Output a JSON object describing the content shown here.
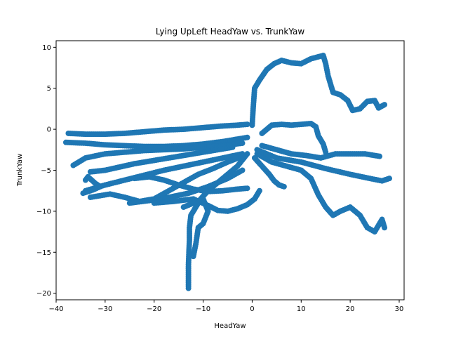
{
  "chart_data": {
    "type": "scatter",
    "title": "Lying UpLeft HeadYaw vs. TrunkYaw",
    "xlabel": "HeadYaw",
    "ylabel": "TrunkYaw",
    "xlim": [
      -40.0,
      31.0
    ],
    "ylim": [
      -20.8,
      10.8
    ],
    "xticks": [
      -40,
      -30,
      -20,
      -10,
      0,
      10,
      20,
      30
    ],
    "yticks": [
      -20,
      -15,
      -10,
      -5,
      0,
      5,
      10
    ],
    "grid": false,
    "marker_color": "#1f77b4",
    "paths": [
      {
        "name": "upper-right-loop",
        "points": [
          [
            0.0,
            0.5
          ],
          [
            0.2,
            2.5
          ],
          [
            0.5,
            5.0
          ],
          [
            1.5,
            6.0
          ],
          [
            3.0,
            7.3
          ],
          [
            4.5,
            8.0
          ],
          [
            6.0,
            8.4
          ],
          [
            8.0,
            8.1
          ],
          [
            10.0,
            8.0
          ],
          [
            12.0,
            8.6
          ],
          [
            14.5,
            9.0
          ],
          [
            15.0,
            8.0
          ],
          [
            15.5,
            6.5
          ],
          [
            16.5,
            4.5
          ],
          [
            18.0,
            4.2
          ],
          [
            19.5,
            3.5
          ],
          [
            20.5,
            2.3
          ],
          [
            22.0,
            2.5
          ],
          [
            23.5,
            3.4
          ],
          [
            25.0,
            3.5
          ],
          [
            25.8,
            2.6
          ],
          [
            27.0,
            3.0
          ]
        ]
      },
      {
        "name": "lower-left-tail",
        "points": [
          [
            -1.0,
            -3.0
          ],
          [
            -3.0,
            -4.5
          ],
          [
            -5.0,
            -5.5
          ],
          [
            -7.0,
            -6.5
          ],
          [
            -9.0,
            -7.5
          ],
          [
            -10.5,
            -8.5
          ],
          [
            -11.5,
            -9.5
          ],
          [
            -12.5,
            -10.5
          ],
          [
            -12.8,
            -12.0
          ],
          [
            -12.8,
            -13.5
          ],
          [
            -12.9,
            -15.0
          ],
          [
            -13.0,
            -16.5
          ],
          [
            -13.0,
            -18.0
          ],
          [
            -13.0,
            -19.4
          ]
        ]
      },
      {
        "name": "right-flat-band",
        "points": [
          [
            2.0,
            -0.5
          ],
          [
            4.0,
            0.5
          ],
          [
            6.0,
            0.6
          ],
          [
            8.0,
            0.5
          ],
          [
            10.0,
            0.6
          ],
          [
            12.0,
            0.7
          ],
          [
            13.0,
            0.3
          ],
          [
            13.5,
            -0.8
          ],
          [
            14.5,
            -1.8
          ],
          [
            15.0,
            -2.8
          ]
        ]
      },
      {
        "name": "right-lower-band",
        "points": [
          [
            2.0,
            -2.0
          ],
          [
            5.0,
            -2.5
          ],
          [
            8.0,
            -3.0
          ],
          [
            11.0,
            -3.2
          ],
          [
            14.0,
            -3.5
          ],
          [
            17.0,
            -3.0
          ],
          [
            20.0,
            -3.0
          ],
          [
            23.0,
            -3.0
          ],
          [
            26.0,
            -3.3
          ]
        ]
      },
      {
        "name": "right-descending-loop",
        "points": [
          [
            1.0,
            -3.0
          ],
          [
            4.0,
            -4.0
          ],
          [
            7.0,
            -4.5
          ],
          [
            10.0,
            -5.0
          ],
          [
            12.0,
            -6.0
          ],
          [
            13.5,
            -8.0
          ],
          [
            15.0,
            -9.5
          ],
          [
            16.5,
            -10.5
          ],
          [
            18.0,
            -10.0
          ],
          [
            20.0,
            -9.5
          ],
          [
            22.0,
            -10.5
          ],
          [
            23.5,
            -12.0
          ],
          [
            25.0,
            -12.5
          ],
          [
            26.5,
            -11.0
          ],
          [
            27.0,
            -12.0
          ]
        ]
      },
      {
        "name": "right-mid-band",
        "points": [
          [
            1.0,
            -2.5
          ],
          [
            5.0,
            -3.5
          ],
          [
            10.0,
            -4.0
          ],
          [
            15.0,
            -4.8
          ],
          [
            20.0,
            -5.5
          ],
          [
            24.0,
            -6.0
          ],
          [
            26.5,
            -6.3
          ],
          [
            28.0,
            -6.0
          ]
        ]
      },
      {
        "name": "right-small-tail",
        "points": [
          [
            0.5,
            -3.5
          ],
          [
            2.0,
            -4.5
          ],
          [
            3.5,
            -5.5
          ],
          [
            4.5,
            -6.3
          ],
          [
            5.5,
            -6.8
          ],
          [
            6.5,
            -7.0
          ]
        ]
      },
      {
        "name": "left-upper-band",
        "points": [
          [
            -37.5,
            -0.5
          ],
          [
            -34.0,
            -0.6
          ],
          [
            -30.0,
            -0.6
          ],
          [
            -26.0,
            -0.5
          ],
          [
            -22.0,
            -0.3
          ],
          [
            -18.0,
            -0.1
          ],
          [
            -14.0,
            0.0
          ],
          [
            -10.0,
            0.2
          ],
          [
            -6.0,
            0.4
          ],
          [
            -3.0,
            0.5
          ],
          [
            -1.0,
            0.6
          ]
        ]
      },
      {
        "name": "left-mid-band",
        "points": [
          [
            -38.0,
            -1.6
          ],
          [
            -34.0,
            -1.7
          ],
          [
            -30.0,
            -1.9
          ],
          [
            -26.0,
            -2.0
          ],
          [
            -22.0,
            -2.1
          ],
          [
            -18.0,
            -2.1
          ],
          [
            -14.0,
            -2.0
          ],
          [
            -10.0,
            -1.8
          ],
          [
            -6.0,
            -1.5
          ],
          [
            -3.0,
            -1.2
          ],
          [
            -1.0,
            -1.0
          ]
        ]
      },
      {
        "name": "left-lower-band",
        "points": [
          [
            -36.5,
            -4.4
          ],
          [
            -34.0,
            -3.5
          ],
          [
            -30.0,
            -3.0
          ],
          [
            -26.0,
            -2.8
          ],
          [
            -22.0,
            -2.6
          ],
          [
            -18.0,
            -2.5
          ],
          [
            -14.0,
            -2.4
          ],
          [
            -10.0,
            -2.2
          ],
          [
            -6.0,
            -2.0
          ],
          [
            -2.0,
            -1.7
          ]
        ]
      },
      {
        "name": "left-diag-1",
        "points": [
          [
            -34.0,
            -7.5
          ],
          [
            -30.0,
            -6.8
          ],
          [
            -26.0,
            -6.2
          ],
          [
            -22.0,
            -5.6
          ],
          [
            -18.0,
            -5.0
          ],
          [
            -14.0,
            -4.5
          ],
          [
            -10.0,
            -4.0
          ],
          [
            -6.0,
            -3.5
          ],
          [
            -2.0,
            -3.0
          ]
        ]
      },
      {
        "name": "left-diag-2",
        "points": [
          [
            -33.0,
            -8.3
          ],
          [
            -29.0,
            -7.9
          ],
          [
            -26.0,
            -8.3
          ],
          [
            -23.0,
            -8.8
          ],
          [
            -20.0,
            -8.5
          ],
          [
            -17.0,
            -7.5
          ],
          [
            -14.0,
            -6.5
          ],
          [
            -11.0,
            -5.5
          ],
          [
            -8.0,
            -4.8
          ],
          [
            -5.0,
            -4.0
          ],
          [
            -2.0,
            -3.3
          ]
        ]
      },
      {
        "name": "left-diag-3",
        "points": [
          [
            -25.0,
            -9.0
          ],
          [
            -21.0,
            -8.7
          ],
          [
            -17.0,
            -8.3
          ],
          [
            -13.0,
            -7.8
          ],
          [
            -9.0,
            -7.0
          ],
          [
            -5.0,
            -6.0
          ],
          [
            -2.0,
            -5.0
          ]
        ]
      },
      {
        "name": "left-diag-4",
        "points": [
          [
            -33.0,
            -5.2
          ],
          [
            -30.0,
            -5.0
          ],
          [
            -27.0,
            -4.6
          ],
          [
            -24.0,
            -4.2
          ],
          [
            -20.0,
            -3.8
          ],
          [
            -16.0,
            -3.4
          ],
          [
            -12.0,
            -3.0
          ],
          [
            -8.0,
            -2.6
          ],
          [
            -4.0,
            -2.2
          ]
        ]
      },
      {
        "name": "left-diag-5",
        "points": [
          [
            -24.0,
            -6.0
          ],
          [
            -21.0,
            -5.8
          ],
          [
            -18.0,
            -6.2
          ],
          [
            -15.0,
            -6.8
          ],
          [
            -12.0,
            -7.3
          ],
          [
            -9.0,
            -7.6
          ],
          [
            -6.0,
            -7.5
          ],
          [
            -3.0,
            -7.3
          ],
          [
            -1.0,
            -7.2
          ]
        ]
      },
      {
        "name": "left-diag-6",
        "points": [
          [
            -20.0,
            -9.0
          ],
          [
            -16.0,
            -8.8
          ],
          [
            -12.0,
            -8.5
          ],
          [
            -9.0,
            -9.3
          ],
          [
            -7.0,
            -9.9
          ],
          [
            -5.0,
            -10.0
          ],
          [
            -3.0,
            -9.7
          ],
          [
            -1.0,
            -9.2
          ],
          [
            0.5,
            -8.5
          ],
          [
            1.5,
            -7.5
          ]
        ]
      },
      {
        "name": "left-diag-7",
        "points": [
          [
            -14.0,
            -9.5
          ],
          [
            -12.0,
            -9.0
          ],
          [
            -10.0,
            -8.5
          ],
          [
            -9.0,
            -10.0
          ],
          [
            -10.0,
            -11.5
          ],
          [
            -11.0,
            -12.0
          ],
          [
            -11.5,
            -14.0
          ],
          [
            -12.0,
            -15.5
          ]
        ]
      },
      {
        "name": "left-hook",
        "points": [
          [
            -34.0,
            -6.2
          ],
          [
            -33.5,
            -5.8
          ],
          [
            -32.0,
            -6.6
          ],
          [
            -31.0,
            -7.0
          ],
          [
            -32.5,
            -7.4
          ],
          [
            -34.5,
            -7.8
          ]
        ]
      }
    ]
  }
}
